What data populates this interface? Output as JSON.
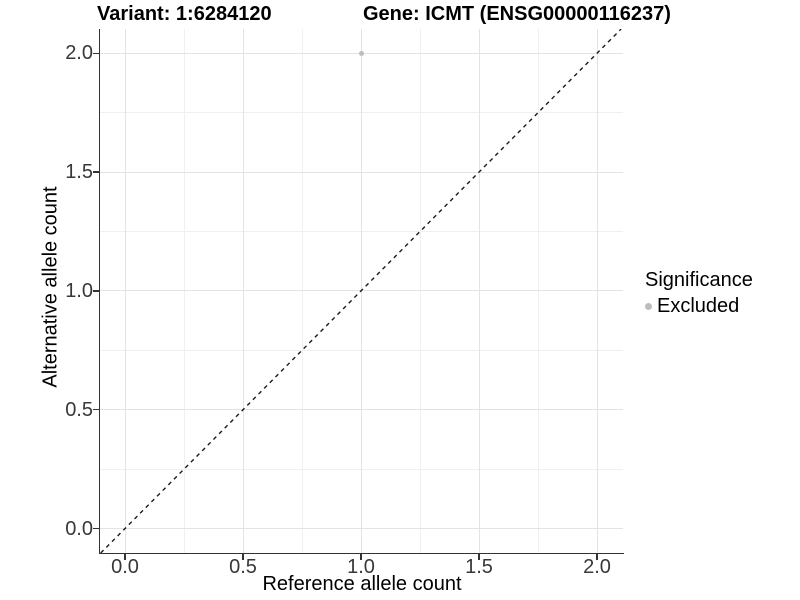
{
  "colors": {
    "background": "#ffffff",
    "axis": "#333333",
    "grid_major": "#e3e3e3",
    "grid_minor": "#f0f0f0",
    "tick_text": "#383838",
    "title_text": "#000000",
    "point": "#bdbdbd",
    "abline": "#1a1a1a"
  },
  "chart_data": {
    "type": "scatter",
    "title_variant": "Variant: 1:6284120",
    "title_gene": "Gene: ICMT (ENSG00000116237)",
    "xlabel": "Reference allele count",
    "ylabel": "Alternative allele count",
    "xlim": [
      -0.106,
      2.11
    ],
    "ylim": [
      -0.103,
      2.102
    ],
    "x_ticks": {
      "values": [
        0,
        0.5,
        1,
        1.5,
        2
      ],
      "labels": [
        "0.0",
        "0.5",
        "1.0",
        "1.5",
        "2.0"
      ]
    },
    "y_ticks": {
      "values": [
        0,
        0.5,
        1,
        1.5,
        2
      ],
      "labels": [
        "0.0",
        "0.5",
        "1.0",
        "1.5",
        "2.0"
      ]
    },
    "x_minor": [
      0.25,
      0.75,
      1.25,
      1.75
    ],
    "y_minor": [
      0.25,
      0.75,
      1.25,
      1.75
    ],
    "grid": "major+minor",
    "points": [
      {
        "x": 1.0,
        "y": 2.0,
        "series": "Excluded",
        "color": "#bdbdbd",
        "radius": 2.5
      }
    ],
    "abline": {
      "slope": 1,
      "intercept": 0,
      "linetype": "dashed",
      "color": "#1a1a1a"
    },
    "legend": {
      "position": "right",
      "title": "Significance",
      "items": [
        {
          "label": "Excluded",
          "color": "#bdbdbd"
        }
      ]
    }
  }
}
